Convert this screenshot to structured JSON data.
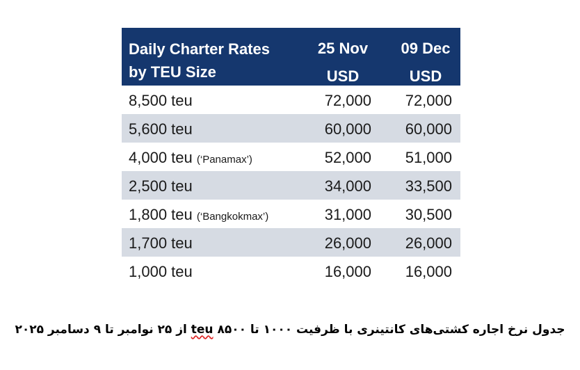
{
  "table": {
    "header": {
      "label_line1": "Daily Charter Rates",
      "label_line2": "by TEU Size",
      "col1_line1": "25 Nov",
      "col1_line2": "USD",
      "col2_line1": "09 Dec",
      "col2_line2": "USD"
    },
    "rows": [
      {
        "size": "8,500 teu",
        "note": "",
        "nov25": "72,000",
        "dec09": "72,000"
      },
      {
        "size": "5,600 teu",
        "note": "",
        "nov25": "60,000",
        "dec09": "60,000"
      },
      {
        "size": "4,000 teu",
        "note": "(‘Panamax’)",
        "nov25": "52,000",
        "dec09": "51,000"
      },
      {
        "size": "2,500 teu",
        "note": "",
        "nov25": "34,000",
        "dec09": "33,500"
      },
      {
        "size": "1,800 teu",
        "note": "(‘Bangkokmax’)",
        "nov25": "31,000",
        "dec09": "30,500"
      },
      {
        "size": "1,700 teu",
        "note": "",
        "nov25": "26,000",
        "dec09": "26,000"
      },
      {
        "size": "1,000 teu",
        "note": "",
        "nov25": "16,000",
        "dec09": "16,000"
      }
    ]
  },
  "caption": {
    "before": "جدول نرخ اجاره کشتی‌های کانتینری با ظرفیت ۱۰۰۰ تا ۸۵۰۰ ",
    "teu": "teu",
    "after": " از ۲۵ نوامبر تا ۹ دسامبر ۲۰۲۵"
  },
  "colors": {
    "header_bg": "#15376e",
    "alt_row_bg": "#d6dbe3"
  }
}
